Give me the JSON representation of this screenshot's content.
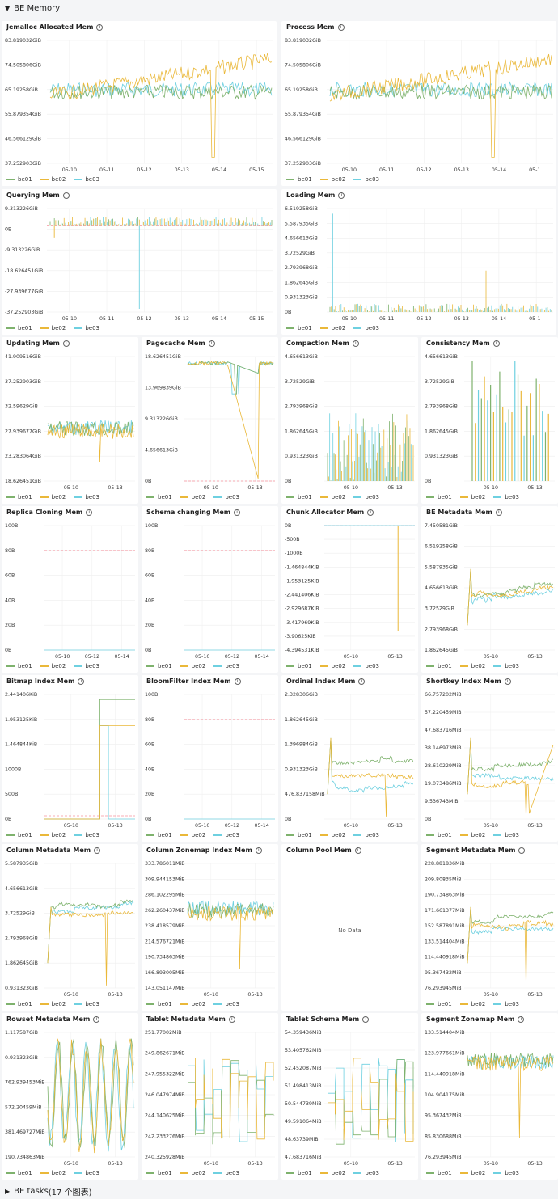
{
  "header": {
    "caret": "▼",
    "title": "BE Memory"
  },
  "footer": {
    "caret": "▶",
    "title": "BE tasks",
    "subtitle": "(17 个图表)"
  },
  "legend": [
    {
      "name": "be01",
      "color": "#7eb26d"
    },
    {
      "name": "be02",
      "color": "#eab839"
    },
    {
      "name": "be03",
      "color": "#6ed0e0"
    }
  ],
  "panels": [
    {
      "title": "Jemalloc Allocated Mem",
      "yticks": [
        "83.819032GiB",
        "74.505806GiB",
        "65.19258GiB",
        "55.879354GiB",
        "46.566129GiB",
        "37.252903GiB"
      ],
      "xticks": [
        "05-10",
        "05-11",
        "05-12",
        "05-13",
        "05-14",
        "05-15"
      ]
    },
    {
      "title": "Process Mem",
      "yticks": [
        "83.819032GiB",
        "74.505806GiB",
        "65.19258GiB",
        "55.879354GiB",
        "46.566129GiB",
        "37.252903GiB"
      ],
      "xticks": [
        "05-10",
        "05-11",
        "05-12",
        "05-13",
        "05-14",
        "05-1"
      ]
    },
    {
      "title": "Querying Mem",
      "yticks": [
        "9.313226GiB",
        "0B",
        "-9.313226GiB",
        "-18.626451GiB",
        "-27.939677GiB",
        "-37.252903GiB"
      ],
      "xticks": [
        "05-10",
        "05-11",
        "05-12",
        "05-13",
        "05-14",
        "05-15"
      ]
    },
    {
      "title": "Loading Mem",
      "yticks": [
        "6.519258GiB",
        "5.587935GiB",
        "4.656613GiB",
        "3.72529GiB",
        "2.793968GiB",
        "1.862645GiB",
        "0.931323GiB",
        "0B"
      ],
      "xticks": [
        "05-10",
        "05-11",
        "05-12",
        "05-13",
        "05-14",
        "05-1"
      ]
    },
    {
      "title": "Updating Mem",
      "yticks": [
        "41.909516GiB",
        "37.252903GiB",
        "32.59629GiB",
        "27.939677GiB",
        "23.283064GiB",
        "18.626451GiB"
      ],
      "xticks": [
        "05-10",
        "05-13"
      ]
    },
    {
      "title": "Pagecache Mem",
      "yticks": [
        "18.626451GiB",
        "13.969839GiB",
        "9.313226GiB",
        "4.656613GiB",
        "0B"
      ],
      "xticks": [
        "05-10",
        "05-13"
      ]
    },
    {
      "title": "Compaction Mem",
      "yticks": [
        "4.656613GiB",
        "3.72529GiB",
        "2.793968GiB",
        "1.862645GiB",
        "0.931323GiB",
        "0B"
      ],
      "xticks": [
        "05-10",
        "05-13"
      ]
    },
    {
      "title": "Consistency Mem",
      "yticks": [
        "4.656613GiB",
        "3.72529GiB",
        "2.793968GiB",
        "1.862645GiB",
        "0.931323GiB",
        "0B"
      ],
      "xticks": [
        "05-10",
        "05-13"
      ]
    },
    {
      "title": "Replica Cloning Mem",
      "yticks": [
        "100B",
        "80B",
        "60B",
        "40B",
        "20B",
        "0B"
      ],
      "xticks": [
        "05-10",
        "05-12",
        "05-14"
      ]
    },
    {
      "title": "Schema changing Mem",
      "yticks": [
        "100B",
        "80B",
        "60B",
        "40B",
        "20B",
        "0B"
      ],
      "xticks": [
        "05-10",
        "05-12",
        "05-14"
      ]
    },
    {
      "title": "Chunk Allocator Mem",
      "yticks": [
        "0B",
        "-500B",
        "-1000B",
        "-1.464844KiB",
        "-1.953125KiB",
        "-2.441406KiB",
        "-2.929687KiB",
        "-3.417969KiB",
        "-3.90625KiB",
        "-4.394531KiB"
      ],
      "xticks": [
        "05-10",
        "05-13"
      ]
    },
    {
      "title": "BE Metadata Mem",
      "yticks": [
        "7.450581GiB",
        "6.519258GiB",
        "5.587935GiB",
        "4.656613GiB",
        "3.72529GiB",
        "2.793968GiB",
        "1.862645GiB"
      ],
      "xticks": [
        "05-10",
        "05-13"
      ]
    },
    {
      "title": "Bitmap Index Mem",
      "yticks": [
        "2.441406KiB",
        "1.953125KiB",
        "1.464844KiB",
        "1000B",
        "500B",
        "0B"
      ],
      "xticks": [
        "05-10",
        "05-13"
      ]
    },
    {
      "title": "BloomFilter Index Mem",
      "yticks": [
        "100B",
        "80B",
        "60B",
        "40B",
        "20B",
        "0B"
      ],
      "xticks": [
        "05-10",
        "05-12",
        "05-14"
      ]
    },
    {
      "title": "Ordinal Index Mem",
      "yticks": [
        "2.328306GiB",
        "1.862645GiB",
        "1.396984GiB",
        "0.931323GiB",
        "476.837158MiB",
        "0B"
      ],
      "xticks": [
        "05-10",
        "05-13"
      ]
    },
    {
      "title": "Shortkey Index Mem",
      "yticks": [
        "66.757202MiB",
        "57.220459MiB",
        "47.683716MiB",
        "38.146973MiB",
        "28.610229MiB",
        "19.073486MiB",
        "9.536743MiB",
        "0B"
      ],
      "xticks": [
        "05-10",
        "05-13"
      ]
    },
    {
      "title": "Column Metadata Mem",
      "yticks": [
        "5.587935GiB",
        "4.656613GiB",
        "3.72529GiB",
        "2.793968GiB",
        "1.862645GiB",
        "0.931323GiB"
      ],
      "xticks": [
        "05-10",
        "05-13"
      ]
    },
    {
      "title": "Column Zonemap Index Mem",
      "yticks": [
        "333.786011MiB",
        "309.944153MiB",
        "286.102295MiB",
        "262.260437MiB",
        "238.418579MiB",
        "214.576721MiB",
        "190.734863MiB",
        "166.893005MiB",
        "143.051147MiB"
      ],
      "xticks": [
        "05-10",
        "05-13"
      ]
    },
    {
      "title": "Column Pool Mem",
      "nodata": "No Data"
    },
    {
      "title": "Segment Metadata Mem",
      "yticks": [
        "228.881836MiB",
        "209.80835MiB",
        "190.734863MiB",
        "171.661377MiB",
        "152.587891MiB",
        "133.514404MiB",
        "114.440918MiB",
        "95.367432MiB",
        "76.293945MiB"
      ],
      "xticks": [
        "05-10",
        "05-13"
      ]
    },
    {
      "title": "Rowset Metadata Mem",
      "yticks": [
        "1.117587GiB",
        "0.931323GiB",
        "762.939453MiB",
        "572.20459MiB",
        "381.469727MiB",
        "190.734863MiB"
      ],
      "xticks": [
        "05-10",
        "05-13"
      ]
    },
    {
      "title": "Tablet Metadata Mem",
      "yticks": [
        "251.77002MiB",
        "249.862671MiB",
        "247.955322MiB",
        "246.047974MiB",
        "244.140625MiB",
        "242.233276MiB",
        "240.325928MiB"
      ],
      "xticks": [
        "05-10",
        "05-13"
      ]
    },
    {
      "title": "Tablet Schema Mem",
      "yticks": [
        "54.359436MiB",
        "53.405762MiB",
        "52.452087MiB",
        "51.498413MiB",
        "50.544739MiB",
        "49.591064MiB",
        "48.63739MiB",
        "47.683716MiB"
      ],
      "xticks": [
        "05-10",
        "05-13"
      ]
    },
    {
      "title": "Segment Zonemap Mem",
      "yticks": [
        "133.514404MiB",
        "123.977661MiB",
        "114.440918MiB",
        "104.904175MiB",
        "95.367432MiB",
        "85.830688MiB",
        "76.293945MiB"
      ],
      "xticks": [
        "05-10",
        "05-13"
      ]
    }
  ]
}
